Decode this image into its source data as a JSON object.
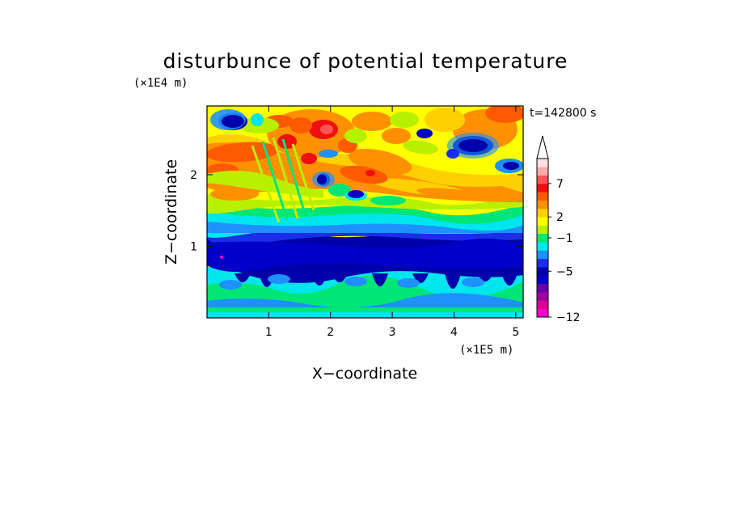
{
  "chart_data": {
    "type": "heatmap",
    "title": "disturbunce of potential temperature",
    "time_label": "t=142800 s",
    "xlabel": "X−coordinate",
    "ylabel": "Z−coordinate",
    "x_unit": "(×1E5 m)",
    "y_unit": "(×1E4 m)",
    "xlim": [
      0,
      5.12
    ],
    "ylim": [
      0,
      2.96
    ],
    "x_ticks": [
      1,
      2,
      3,
      4,
      5
    ],
    "x_tick_labels": [
      "1",
      "2",
      "3",
      "4",
      "5"
    ],
    "y_ticks": [
      1,
      2
    ],
    "y_tick_labels": [
      "1",
      "2"
    ],
    "colorbar": {
      "labels": [
        {
          "value": 7,
          "text": "7"
        },
        {
          "value": 2,
          "text": "2"
        },
        {
          "value": -1,
          "text": "−1"
        },
        {
          "value": -5,
          "text": "−5"
        },
        {
          "value": -12,
          "text": "−12"
        }
      ],
      "extend": "max",
      "colors": [
        "#ff00cc",
        "#dd0099",
        "#a000a0",
        "#6600aa",
        "#0000c8",
        "#0000aa",
        "#1a2ee8",
        "#1e90ff",
        "#00e5ee",
        "#00e676",
        "#b8f000",
        "#ffff00",
        "#ffd000",
        "#ff9000",
        "#ff5a00",
        "#ee1010",
        "#ff5555",
        "#ffaaaa",
        "#ffe0e0"
      ]
    },
    "field_description_by_height": [
      {
        "z_range": [
          2.3,
          2.96
        ],
        "dominant": "orange-yellow with blue cells"
      },
      {
        "z_range": [
          1.5,
          2.3
        ],
        "dominant": "orange-yellow"
      },
      {
        "z_range": [
          1.2,
          1.5
        ],
        "dominant": "green-cyan"
      },
      {
        "z_range": [
          0.6,
          1.2
        ],
        "dominant": "dark blue"
      },
      {
        "z_range": [
          0.0,
          0.6
        ],
        "dominant": "cyan-green-blue"
      }
    ]
  }
}
